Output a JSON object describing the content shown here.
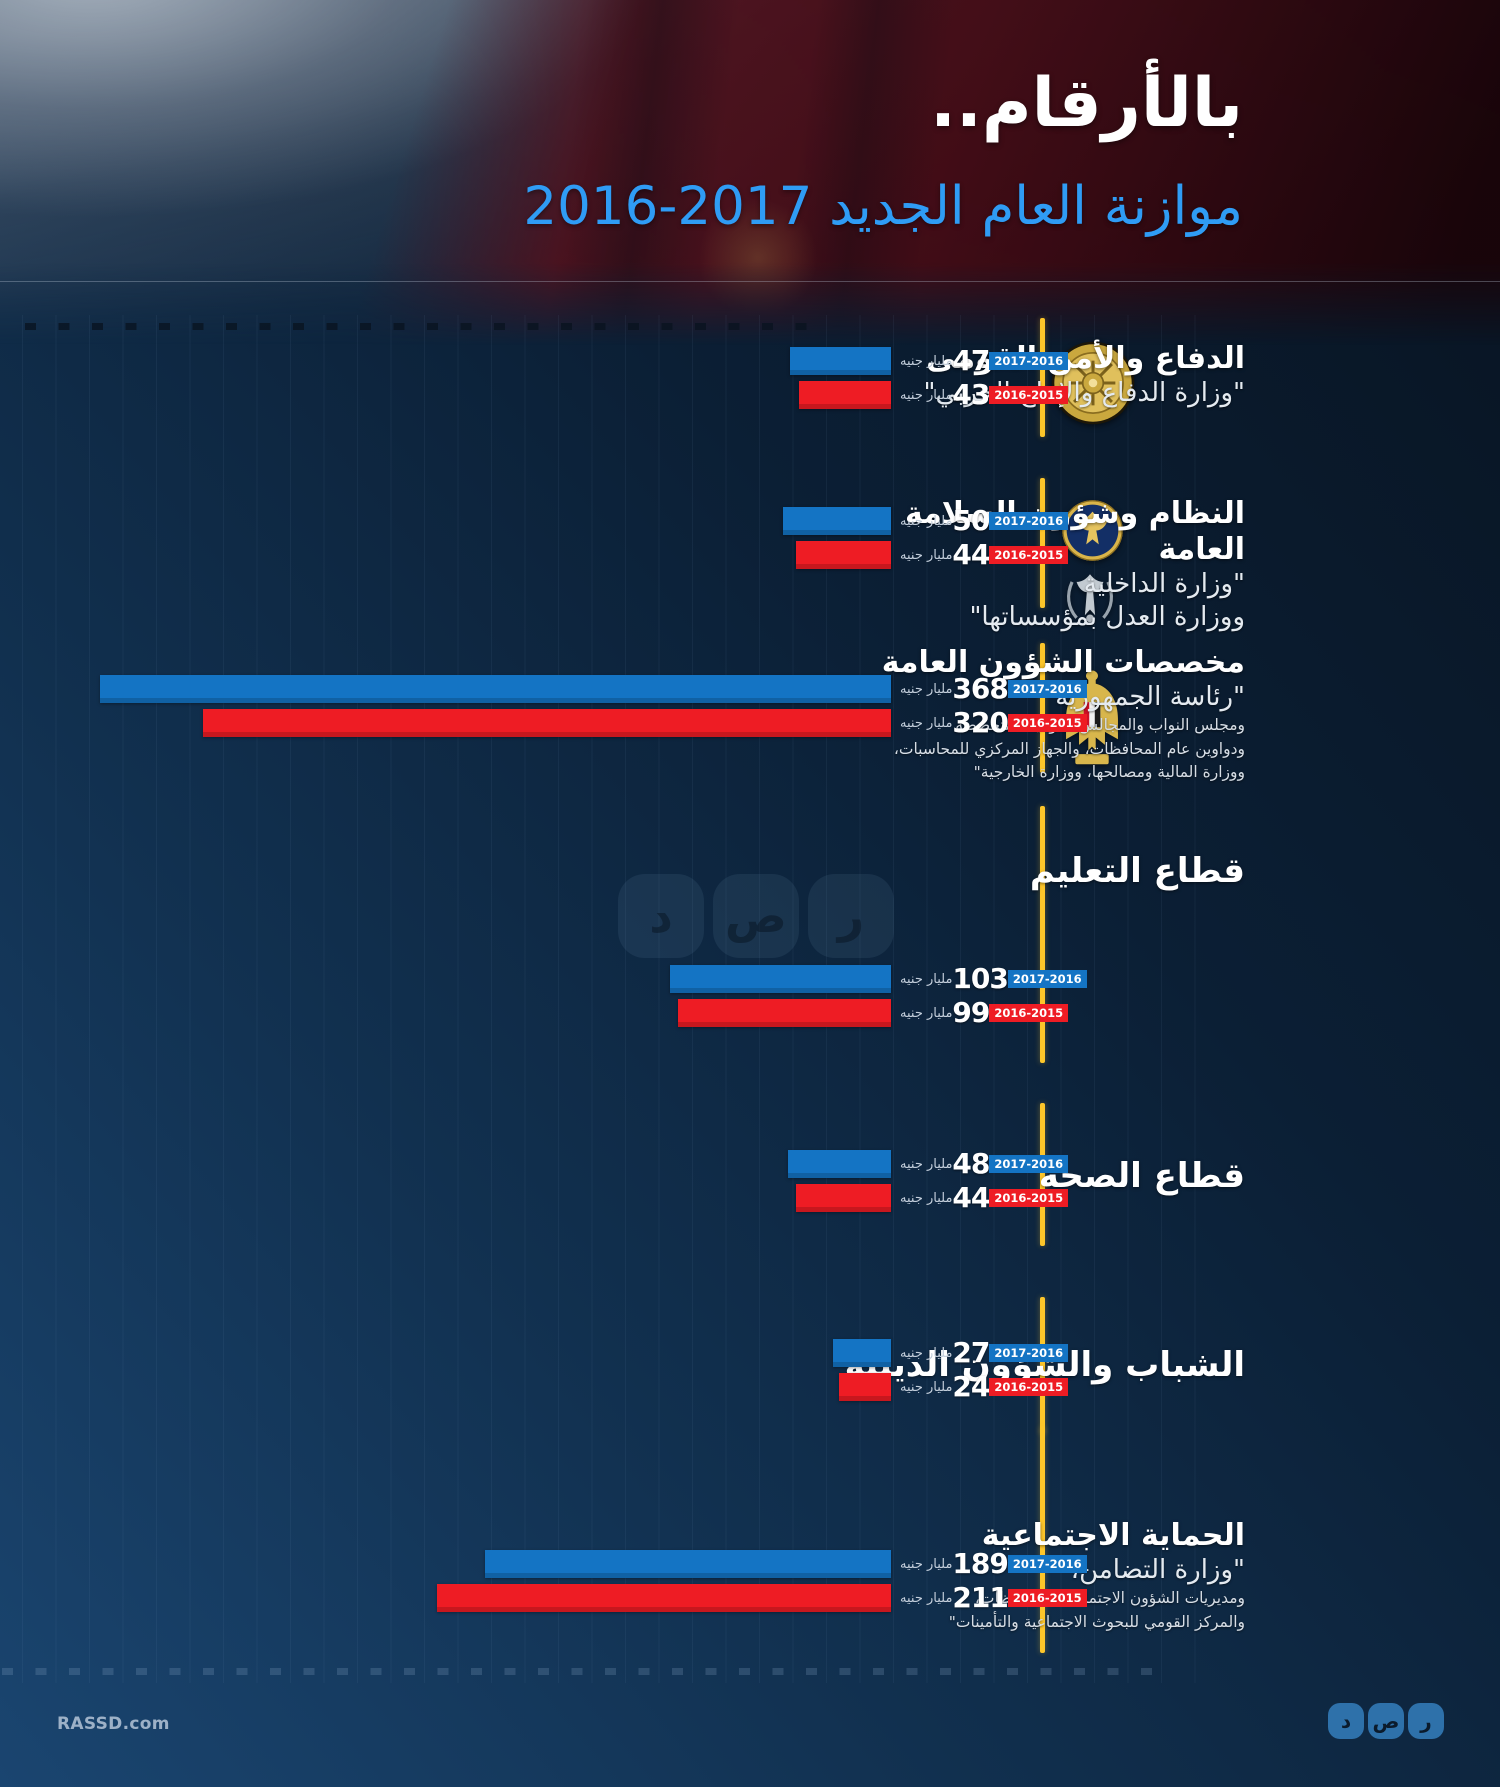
{
  "header": {
    "title": "بالأرقام..",
    "subtitle": "موازنة العام الجديد 2017-2016"
  },
  "units_label": "مليار جنيه",
  "legend": {
    "year_new": "2017-2016",
    "year_old": "2016-2015"
  },
  "colors": {
    "bar_new": "#1474c4",
    "bar_old": "#ee1c24",
    "accent_line": "#fdc62a",
    "subtitle_blue": "#2f9cf5"
  },
  "watermark_letters": [
    "د",
    "ص",
    "ر"
  ],
  "footer": {
    "site": "RASSD.com",
    "logo_letters": [
      "د",
      "ص",
      "ر"
    ]
  },
  "sections": [
    {
      "title": "الدفاع والأمن القومى",
      "subtitle_lines": [
        "\"وزارة الدفاع والإنتاج الحربي\""
      ],
      "detail_lines": [],
      "icons": [
        "military-emblem-icon"
      ],
      "value_new": 47,
      "value_old": 43
    },
    {
      "title": "النظام وشؤون السلامة العامة",
      "subtitle_lines": [
        "\"وزارة الداخلية",
        "ووزارة العدل بمؤسساتها\""
      ],
      "detail_lines": [],
      "icons": [
        "police-emblem-icon",
        "justice-emblem-icon"
      ],
      "value_new": 50,
      "value_old": 44
    },
    {
      "title": "مخصصات الشؤون العامة",
      "subtitle_lines": [
        "\"رئاسة الجمهورية"
      ],
      "detail_lines": [
        "ومجلس النواب والمجالس القومية المتخصصة",
        "ودواوين عام المحافظات، والجهاز المركزي للمحاسبات،",
        "ووزارة المالية ومصالحها، ووزارة الخارجية\""
      ],
      "icons": [
        "egypt-eagle-emblem-icon"
      ],
      "value_new": 368,
      "value_old": 320
    },
    {
      "title": "قطاع التعليم",
      "subtitle_lines": [],
      "detail_lines": [],
      "icons": [],
      "value_new": 103,
      "value_old": 99
    },
    {
      "title": "قطاع الصحة",
      "subtitle_lines": [],
      "detail_lines": [],
      "icons": [],
      "value_new": 48,
      "value_old": 44
    },
    {
      "title": "الشباب والشؤون الدينية",
      "subtitle_lines": [],
      "detail_lines": [],
      "icons": [],
      "value_new": 27,
      "value_old": 24
    },
    {
      "title": "الحماية الاجتماعية",
      "subtitle_lines": [
        "\"وزارة التضامن،"
      ],
      "detail_lines": [
        "ومديريات الشؤون الاجتماعية بالمحافظات،",
        "والمركز القومي للبحوث الاجتماعية والتأمينات\""
      ],
      "icons": [],
      "value_new": 189,
      "value_old": 211
    }
  ],
  "chart_data": {
    "type": "bar",
    "orientation": "horizontal",
    "title": "موازنة العام الجديد 2017-2016",
    "unit": "مليار جنيه",
    "categories": [
      "الدفاع والأمن القومى",
      "النظام وشؤون السلامة العامة",
      "مخصصات الشؤون العامة",
      "قطاع التعليم",
      "قطاع الصحة",
      "الشباب والشؤون الدينية",
      "الحماية الاجتماعية"
    ],
    "series": [
      {
        "name": "2017-2016",
        "color": "#1474c4",
        "values": [
          47,
          50,
          368,
          103,
          48,
          27,
          189
        ]
      },
      {
        "name": "2016-2015",
        "color": "#ee1c24",
        "values": [
          43,
          44,
          320,
          99,
          44,
          24,
          211
        ]
      }
    ],
    "value_axis_range": [
      0,
      380
    ],
    "legend_position": "inline-badges",
    "grid": "faint vertical gridlines"
  }
}
